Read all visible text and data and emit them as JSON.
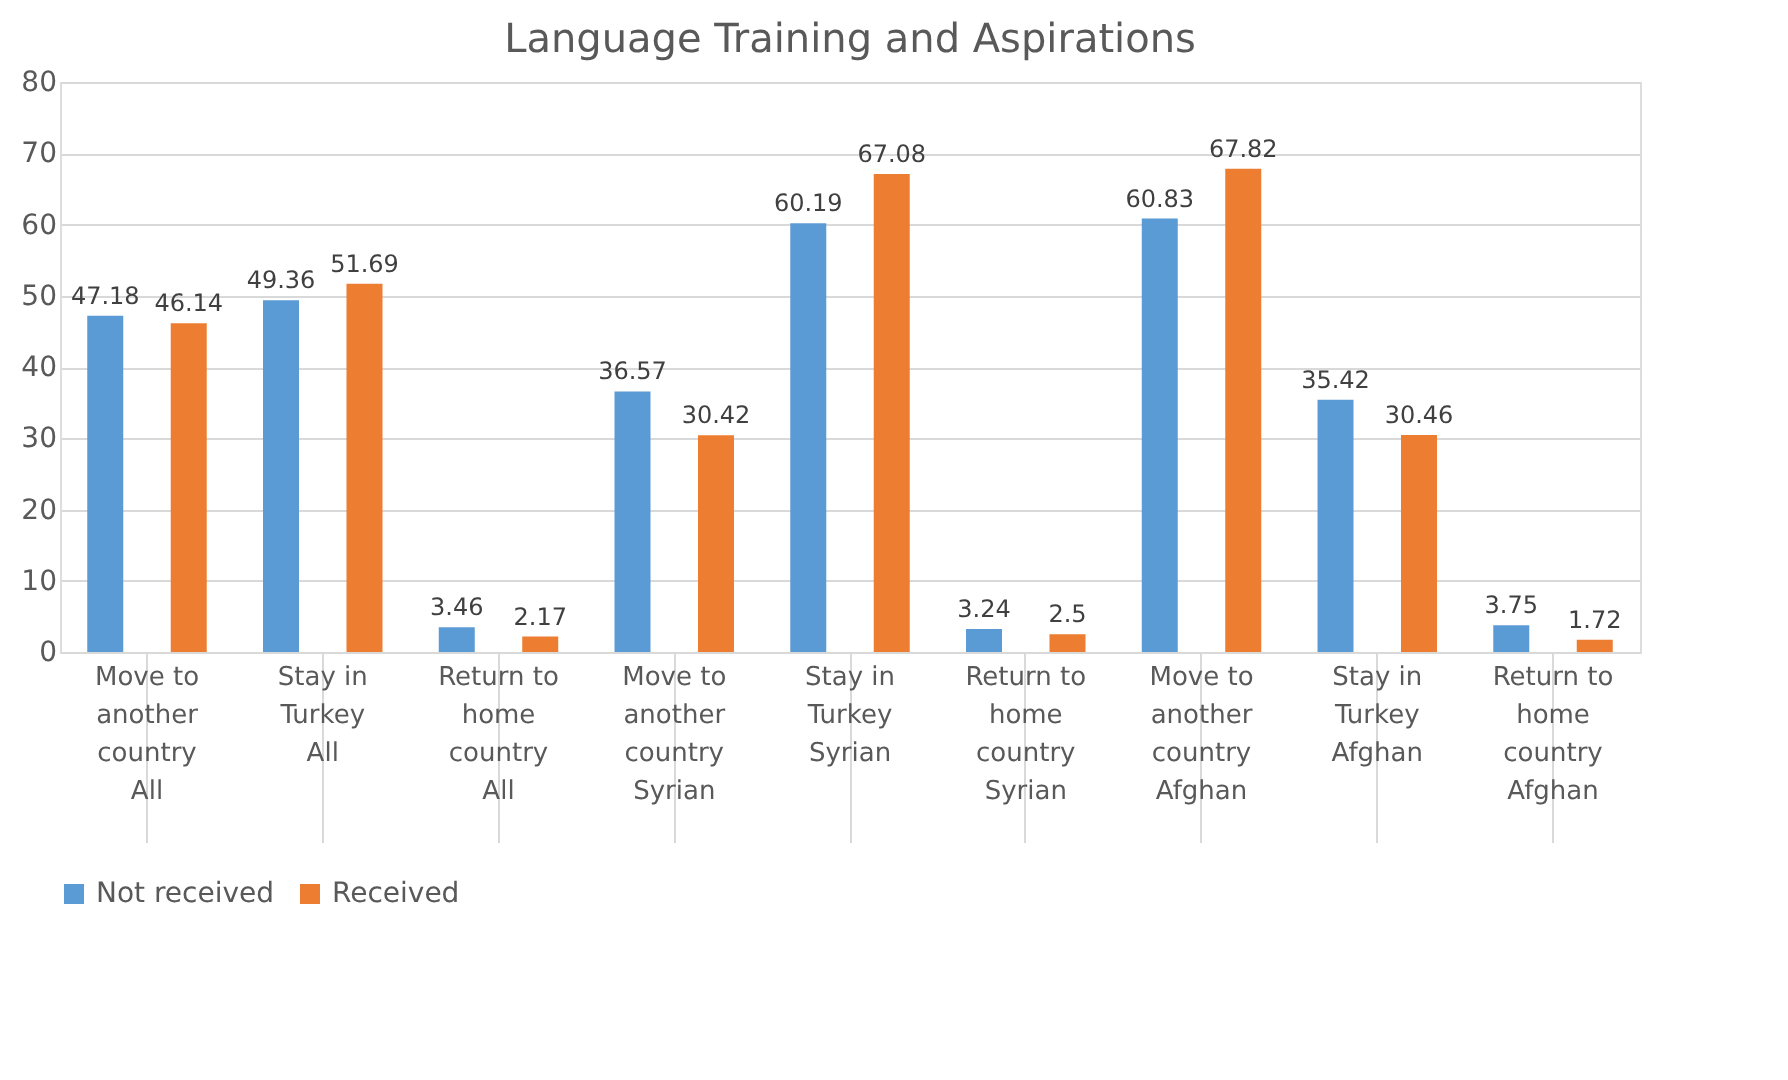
{
  "chart_data": {
    "type": "bar",
    "title": "Language Training and Aspirations",
    "categories": [
      "Move to another country\nAll",
      "Stay in Turkey\nAll",
      "Return to home country\nAll",
      "Move to another country\nSyrian",
      "Stay in Turkey\nSyrian",
      "Return to home country\nSyrian",
      "Move to another country\nAfghan",
      "Stay in Turkey\nAfghan",
      "Return to home country\nAfghan"
    ],
    "series": [
      {
        "name": "Not received",
        "color": "#5b9bd5",
        "values": [
          47.18,
          49.36,
          3.46,
          36.57,
          60.19,
          3.24,
          60.83,
          35.42,
          3.75
        ]
      },
      {
        "name": "Received",
        "color": "#ed7d31",
        "values": [
          46.14,
          51.69,
          2.17,
          30.42,
          67.08,
          2.5,
          67.82,
          30.46,
          1.72
        ]
      }
    ],
    "ylim": [
      0,
      80
    ],
    "yticks": [
      0,
      10,
      20,
      30,
      40,
      50,
      60,
      70,
      80
    ],
    "grid": "y",
    "legend": "bottom",
    "data_labels": true
  }
}
